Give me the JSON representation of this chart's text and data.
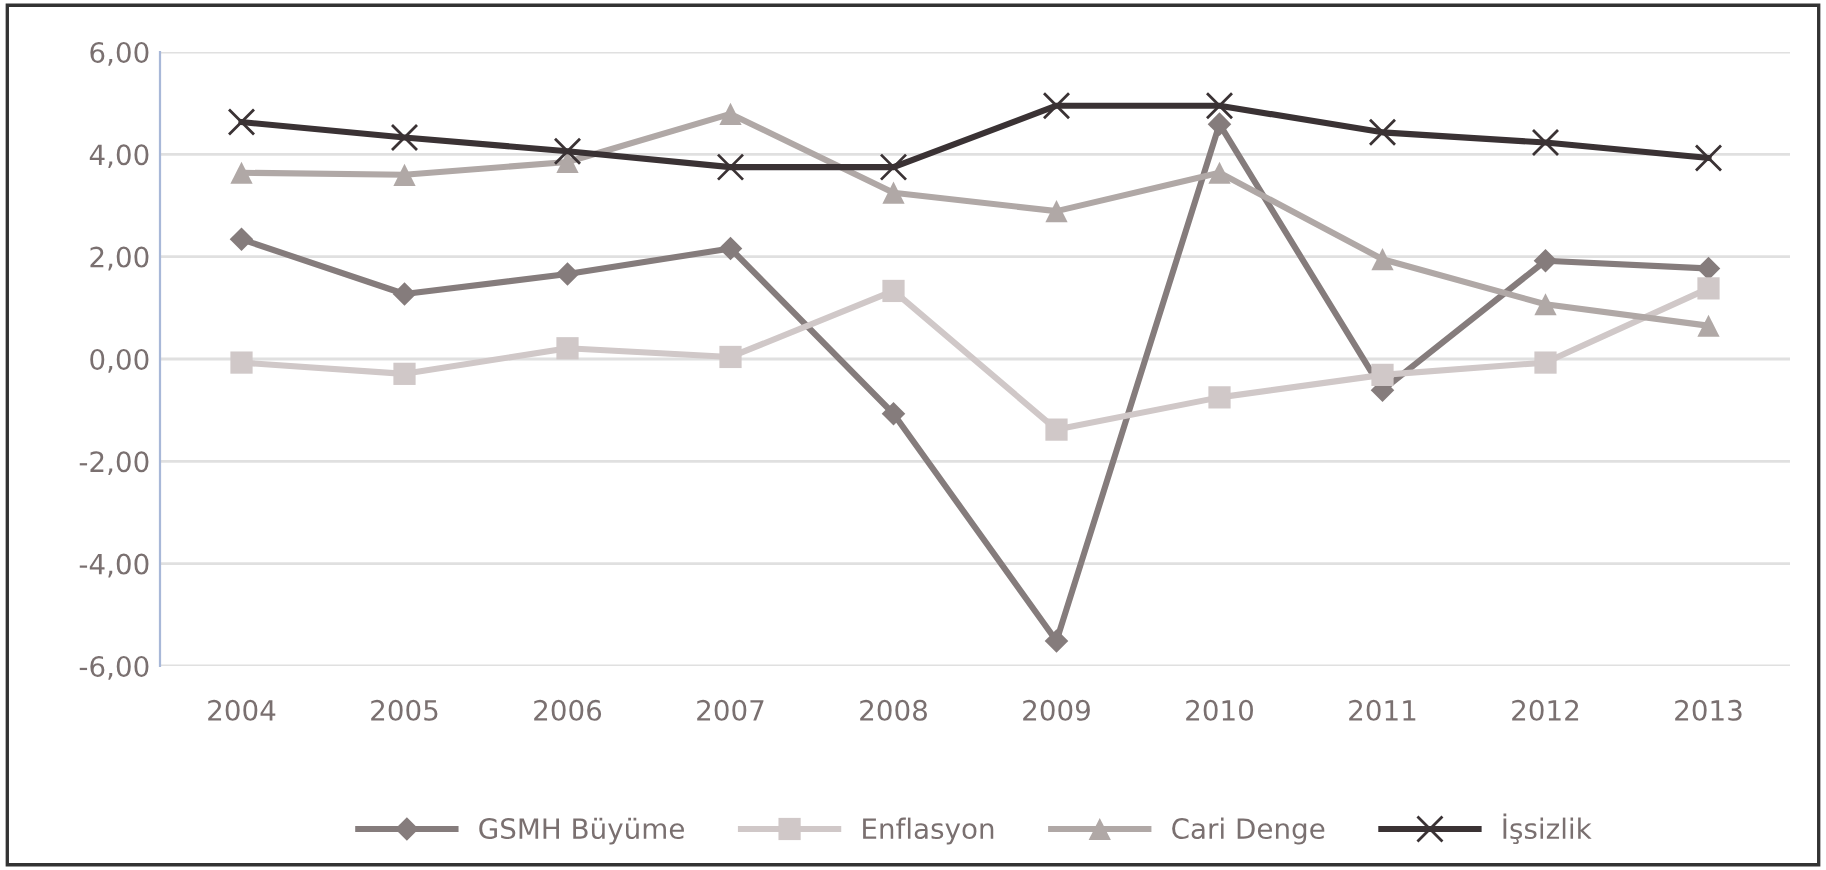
{
  "chart_data": {
    "type": "line",
    "categories": [
      "2004",
      "2005",
      "2006",
      "2007",
      "2008",
      "2009",
      "2010",
      "2011",
      "2012",
      "2013"
    ],
    "series": [
      {
        "name": "GSMH Büyüme",
        "color": "#857c7c",
        "marker": "diamond",
        "values": [
          2.34,
          1.27,
          1.66,
          2.16,
          -1.07,
          -5.51,
          4.59,
          -0.61,
          1.92,
          1.77
        ]
      },
      {
        "name": "Enflasyon",
        "color": "#d0c8c8",
        "marker": "square",
        "values": [
          -0.07,
          -0.29,
          0.21,
          0.04,
          1.33,
          -1.38,
          -0.75,
          -0.31,
          -0.07,
          1.38
        ]
      },
      {
        "name": "Cari Denge",
        "color": "#b0a8a6",
        "marker": "triangle",
        "values": [
          3.64,
          3.6,
          3.85,
          4.79,
          3.25,
          2.89,
          3.64,
          1.95,
          1.07,
          0.65
        ]
      },
      {
        "name": "İşsizlik",
        "color": "#3a3234",
        "marker": "cross",
        "values": [
          4.63,
          4.33,
          4.06,
          3.75,
          3.75,
          4.95,
          4.95,
          4.43,
          4.23,
          3.93
        ]
      }
    ],
    "ylim": [
      -6,
      6
    ],
    "yticks": [
      {
        "value": -6,
        "label": "-6,00"
      },
      {
        "value": -4,
        "label": "-4,00"
      },
      {
        "value": -2,
        "label": "-2,00"
      },
      {
        "value": 0,
        "label": "0,00"
      },
      {
        "value": 2,
        "label": "2,00"
      },
      {
        "value": 4,
        "label": "4,00"
      },
      {
        "value": 6,
        "label": "6,00"
      }
    ],
    "grid": "y",
    "legend": "bottom",
    "line_style": "solid"
  }
}
